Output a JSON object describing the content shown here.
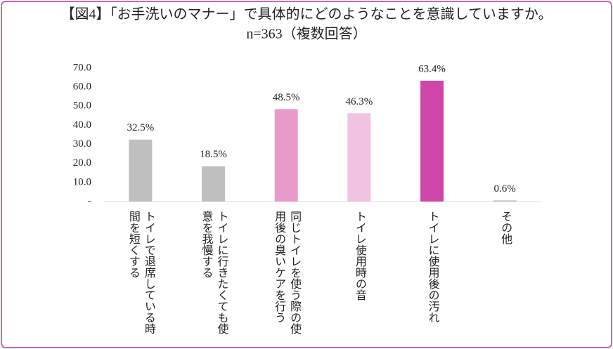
{
  "chart_data": {
    "type": "bar",
    "title": "【図4】「お手洗いのマナー」で具体的にどのようなことを意識していますか。",
    "subtitle": "n=363（複数回答）",
    "categories": [
      "トイレで退席している時間を短くする",
      "トイレに行きたくても使意を我慢する",
      "同じトイレを使う際の使用後の臭いケアを行う",
      "トイレ使用時の音",
      "トイレに使用後の汚れ",
      "その他"
    ],
    "values": [
      32.5,
      18.5,
      48.5,
      46.3,
      63.4,
      0.6
    ],
    "value_labels": [
      "32.5%",
      "18.5%",
      "48.5%",
      "46.3%",
      "63.4%",
      "0.6%"
    ],
    "colors": [
      "#bfbfbf",
      "#bfbfbf",
      "#e89acd",
      "#f1c2e1",
      "#cf46a9",
      "#bfbfbf"
    ],
    "ylim": [
      0,
      70
    ],
    "yticks": [
      {
        "value": 0,
        "label": "-"
      },
      {
        "value": 10,
        "label": "10.0"
      },
      {
        "value": 20,
        "label": "20.0"
      },
      {
        "value": 30,
        "label": "30.0"
      },
      {
        "value": 40,
        "label": "40.0"
      },
      {
        "value": 50,
        "label": "50.0"
      },
      {
        "value": 60,
        "label": "60.0"
      },
      {
        "value": 70,
        "label": "70.0"
      }
    ],
    "grid": false
  }
}
